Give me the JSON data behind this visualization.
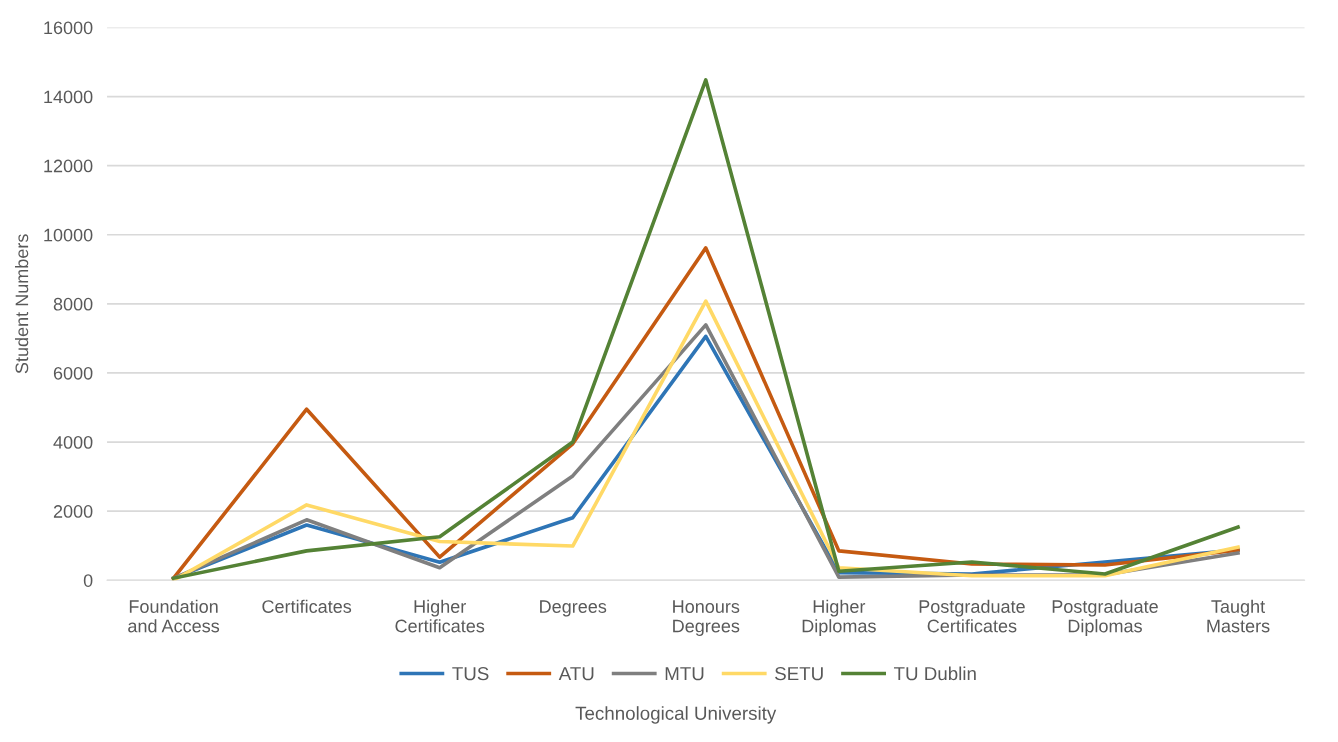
{
  "chart_data": {
    "type": "line",
    "xlabel": "Technological University",
    "ylabel": "Student Numbers",
    "categories": [
      "Foundation\nand Access",
      "Certificates",
      "Higher\nCertificates",
      "Degrees",
      "Honours\nDegrees",
      "Higher\nDiplomas",
      "Postgraduate\nCertificates",
      "Postgraduate\nDiplomas",
      "Taught\nMasters"
    ],
    "series": [
      {
        "name": "TUS",
        "color": "#2e75b6",
        "values": [
          50,
          1600,
          520,
          1810,
          7060,
          220,
          180,
          530,
          880
        ]
      },
      {
        "name": "ATU",
        "color": "#c55a11",
        "values": [
          60,
          4950,
          670,
          3950,
          9620,
          850,
          470,
          440,
          870
        ]
      },
      {
        "name": "MTU",
        "color": "#7f7f7f",
        "values": [
          50,
          1750,
          360,
          3020,
          7390,
          90,
          150,
          160,
          790
        ]
      },
      {
        "name": "SETU",
        "color": "#ffd966",
        "values": [
          0,
          2180,
          1120,
          990,
          8080,
          360,
          130,
          130,
          960
        ]
      },
      {
        "name": "TU Dublin",
        "color": "#548235",
        "values": [
          60,
          850,
          1260,
          4000,
          14480,
          260,
          530,
          180,
          1540
        ]
      }
    ],
    "ylim": [
      0,
      16000
    ],
    "yticks": [
      0,
      2000,
      4000,
      6000,
      8000,
      10000,
      12000,
      14000,
      16000
    ],
    "grid": "y",
    "legend": "bottom",
    "marker": "none",
    "line_style": "solid"
  }
}
